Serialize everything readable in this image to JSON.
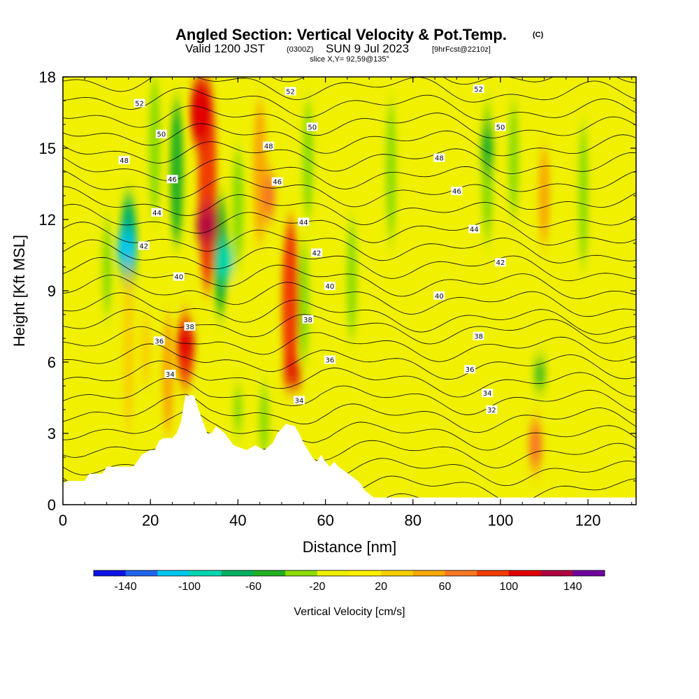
{
  "title": {
    "main": "Angled Section: Vertical Velocity & Pot.Temp.",
    "unit": "(C)",
    "valid_prefix": "Valid 1200 JST",
    "valid_z": "(0300Z)",
    "valid_date": "SUN 9 Jul 2023",
    "forecast": "[9hrFcst@2210z]",
    "slice": "slice X,Y= 92,59@135°"
  },
  "chart_data": {
    "type": "heatmap",
    "xlabel": "Distance [nm]",
    "ylabel": "Height [Kft MSL]",
    "xlim": [
      0,
      131
    ],
    "ylim": [
      0,
      18
    ],
    "x_ticks": [
      "0",
      "20",
      "40",
      "60",
      "80",
      "100",
      "120"
    ],
    "y_ticks": [
      "0",
      "3",
      "6",
      "9",
      "12",
      "15",
      "18"
    ],
    "colorbar": {
      "title": "Vertical Velocity [cm/s]",
      "tick_labels": [
        "-140",
        "-100",
        "-60",
        "-20",
        "20",
        "60",
        "100",
        "140"
      ],
      "levels": [
        -160,
        -140,
        -120,
        -100,
        -80,
        -60,
        -40,
        -20,
        0,
        20,
        40,
        60,
        80,
        100,
        120,
        140,
        160
      ],
      "colors": [
        "#0a14e6",
        "#1e64f0",
        "#00c8f0",
        "#00d8b0",
        "#00b060",
        "#20b020",
        "#8cdc00",
        "#f0f000",
        "#fff000",
        "#f8d000",
        "#f8a800",
        "#f87820",
        "#f03c00",
        "#e00000",
        "#b00040",
        "#7000a0"
      ]
    },
    "background_color": "#f0f000",
    "updrafts": [
      {
        "x": 15,
        "y0": 3,
        "y1": 10,
        "w": 35
      },
      {
        "x": 19,
        "y0": 5,
        "y1": 8,
        "w": 30
      },
      {
        "x": 24,
        "y0": 3,
        "y1": 8,
        "w": 40
      },
      {
        "x": 28,
        "y0": 5,
        "y1": 8,
        "w": 80
      },
      {
        "x": 28,
        "y0": 6,
        "y1": 7.5,
        "w": 100
      },
      {
        "x": 33,
        "y0": 9,
        "y1": 18,
        "w": 90
      },
      {
        "x": 33,
        "y0": 11,
        "y1": 12.5,
        "w": 130
      },
      {
        "x": 31.5,
        "y0": 15,
        "y1": 18,
        "w": 110
      },
      {
        "x": 45,
        "y0": 11,
        "y1": 17,
        "w": 50
      },
      {
        "x": 47,
        "y0": 12,
        "y1": 14,
        "w": 60
      },
      {
        "x": 52,
        "y0": 5,
        "y1": 12,
        "w": 80
      },
      {
        "x": 52.5,
        "y0": 5,
        "y1": 6,
        "w": 100
      },
      {
        "x": 108,
        "y0": 1.5,
        "y1": 3.5,
        "w": 60
      },
      {
        "x": 110,
        "y0": 11,
        "y1": 15,
        "w": 40
      }
    ],
    "downdrafts": [
      {
        "x": 10,
        "y0": 8,
        "y1": 12,
        "w": -30
      },
      {
        "x": 15,
        "y0": 9,
        "y1": 13,
        "w": -80
      },
      {
        "x": 14.5,
        "y0": 10,
        "y1": 11.5,
        "w": -110
      },
      {
        "x": 21,
        "y0": 12,
        "y1": 18,
        "w": -40
      },
      {
        "x": 26,
        "y0": 11,
        "y1": 17,
        "w": -50
      },
      {
        "x": 36,
        "y0": 8,
        "y1": 13,
        "w": -60
      },
      {
        "x": 37,
        "y0": 9.5,
        "y1": 11,
        "w": -90
      },
      {
        "x": 40,
        "y0": 10,
        "y1": 15,
        "w": -40
      },
      {
        "x": 55,
        "y0": 6,
        "y1": 11,
        "w": -40
      },
      {
        "x": 56,
        "y0": 12,
        "y1": 17,
        "w": -35
      },
      {
        "x": 66,
        "y0": 7,
        "y1": 12,
        "w": -30
      },
      {
        "x": 75,
        "y0": 11,
        "y1": 17,
        "w": -30
      },
      {
        "x": 97,
        "y0": 11,
        "y1": 17,
        "w": -40
      },
      {
        "x": 97,
        "y0": 14,
        "y1": 16,
        "w": -50
      },
      {
        "x": 103,
        "y0": 12,
        "y1": 17,
        "w": -30
      },
      {
        "x": 119,
        "y0": 10,
        "y1": 16,
        "w": -30
      },
      {
        "x": 109,
        "y0": 5,
        "y1": 6,
        "w": -50
      },
      {
        "x": 46,
        "y0": 2,
        "y1": 5,
        "w": -30
      },
      {
        "x": 40,
        "y0": 3,
        "y1": 5,
        "w": -25
      }
    ],
    "terrain_kft": [
      [
        0,
        0.9
      ],
      [
        1,
        1
      ],
      [
        5,
        1
      ],
      [
        6,
        1.3
      ],
      [
        9,
        1.3
      ],
      [
        10,
        1.6
      ],
      [
        16,
        1.6
      ],
      [
        17,
        1.8
      ],
      [
        18,
        2.1
      ],
      [
        20,
        2.3
      ],
      [
        21,
        2.3
      ],
      [
        22,
        2.7
      ],
      [
        23,
        2.8
      ],
      [
        25,
        2.8
      ],
      [
        26,
        3
      ],
      [
        27,
        3.5
      ],
      [
        28,
        4.6
      ],
      [
        30,
        4.6
      ],
      [
        31,
        4
      ],
      [
        32,
        3.5
      ],
      [
        33,
        3
      ],
      [
        34,
        3
      ],
      [
        35,
        3.3
      ],
      [
        37,
        3
      ],
      [
        39,
        2.5
      ],
      [
        42,
        2.3
      ],
      [
        44,
        2.5
      ],
      [
        46,
        2.3
      ],
      [
        48,
        2.6
      ],
      [
        49,
        3
      ],
      [
        51,
        3.4
      ],
      [
        53,
        3.3
      ],
      [
        54,
        3
      ],
      [
        55,
        2.6
      ],
      [
        56,
        2.3
      ],
      [
        57,
        2
      ],
      [
        58,
        1.8
      ],
      [
        59,
        2.1
      ],
      [
        60,
        1.8
      ],
      [
        61,
        1.6
      ],
      [
        62,
        1.8
      ],
      [
        63,
        1.6
      ],
      [
        66,
        1.2
      ],
      [
        68,
        0.9
      ],
      [
        69,
        0.6
      ],
      [
        71,
        0.3
      ],
      [
        131,
        0.3
      ]
    ],
    "isentropes": {
      "levels": [
        32,
        34,
        36,
        38,
        40,
        42,
        44,
        46,
        48,
        50,
        52
      ],
      "labels": [
        {
          "text": "52",
          "x": 17.5,
          "y": 16.9
        },
        {
          "text": "52",
          "x": 52,
          "y": 17.4
        },
        {
          "text": "52",
          "x": 95,
          "y": 17.5
        },
        {
          "text": "50",
          "x": 22.5,
          "y": 15.6
        },
        {
          "text": "50",
          "x": 57,
          "y": 15.9
        },
        {
          "text": "50",
          "x": 100,
          "y": 15.9
        },
        {
          "text": "48",
          "x": 14,
          "y": 14.5
        },
        {
          "text": "48",
          "x": 47,
          "y": 15.1
        },
        {
          "text": "48",
          "x": 86,
          "y": 14.6
        },
        {
          "text": "46",
          "x": 25,
          "y": 13.7
        },
        {
          "text": "46",
          "x": 49,
          "y": 13.6
        },
        {
          "text": "46",
          "x": 90,
          "y": 13.2
        },
        {
          "text": "44",
          "x": 21.5,
          "y": 12.3
        },
        {
          "text": "44",
          "x": 55,
          "y": 11.9
        },
        {
          "text": "44",
          "x": 94,
          "y": 11.6
        },
        {
          "text": "42",
          "x": 18.5,
          "y": 10.9
        },
        {
          "text": "42",
          "x": 58,
          "y": 10.6
        },
        {
          "text": "42",
          "x": 100,
          "y": 10.2
        },
        {
          "text": "40",
          "x": 26.5,
          "y": 9.6
        },
        {
          "text": "40",
          "x": 61,
          "y": 9.2
        },
        {
          "text": "40",
          "x": 86,
          "y": 8.8
        },
        {
          "text": "38",
          "x": 29,
          "y": 7.5
        },
        {
          "text": "38",
          "x": 56,
          "y": 7.8
        },
        {
          "text": "38",
          "x": 95,
          "y": 7.1
        },
        {
          "text": "36",
          "x": 22,
          "y": 6.9
        },
        {
          "text": "36",
          "x": 61,
          "y": 6.1
        },
        {
          "text": "36",
          "x": 93,
          "y": 5.7
        },
        {
          "text": "34",
          "x": 24.5,
          "y": 5.5
        },
        {
          "text": "34",
          "x": 54,
          "y": 4.4
        },
        {
          "text": "34",
          "x": 97,
          "y": 4.7
        },
        {
          "text": "32",
          "x": 98,
          "y": 4
        }
      ]
    }
  }
}
